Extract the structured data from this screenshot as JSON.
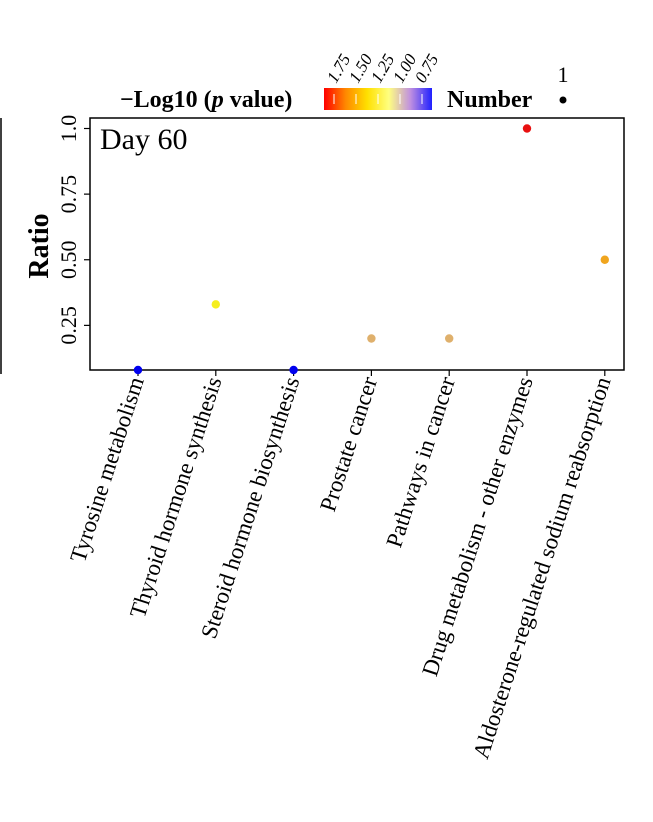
{
  "chart_data": {
    "type": "scatter",
    "panel_label": "Day 60",
    "ylabel": "Ratio",
    "xlabel": "",
    "ylim": [
      0.08,
      1.04
    ],
    "y_ticks": [
      0.25,
      0.5,
      0.75,
      1.0
    ],
    "y_tick_labels": [
      "0.25",
      "0.50",
      "0.75",
      "1.0"
    ],
    "categories": [
      "Tyrosine metabolism",
      "Thyroid hormone synthesis",
      "Steroid hormone biosynthesis",
      "Prostate cancer",
      "Pathways in cancer",
      "Drug metabolism - other enzymes",
      "Aldosterone-regulated sodium reabsorption"
    ],
    "points": [
      {
        "category": "Tyrosine metabolism",
        "ratio": 0.08,
        "neg_log10_p": 0.75,
        "number": 1,
        "color": "#0000ee"
      },
      {
        "category": "Thyroid hormone synthesis",
        "ratio": 0.33,
        "neg_log10_p": 1.15,
        "number": 1,
        "color": "#f5ee1e"
      },
      {
        "category": "Steroid hormone biosynthesis",
        "ratio": 0.08,
        "neg_log10_p": 0.75,
        "number": 1,
        "color": "#0000ee"
      },
      {
        "category": "Prostate cancer",
        "ratio": 0.2,
        "neg_log10_p": 1.1,
        "number": 1,
        "color": "#dfb06c"
      },
      {
        "category": "Pathways in cancer",
        "ratio": 0.2,
        "neg_log10_p": 1.1,
        "number": 1,
        "color": "#dfb06c"
      },
      {
        "category": "Drug metabolism - other enzymes",
        "ratio": 1.0,
        "neg_log10_p": 1.75,
        "number": 1,
        "color": "#e81010"
      },
      {
        "category": "Aldosterone-regulated sodium reabsorption",
        "ratio": 0.5,
        "neg_log10_p": 1.4,
        "number": 1,
        "color": "#f0a51e"
      }
    ],
    "legend": {
      "color_title": "−Log10 (p value)",
      "color_title_prefix": "−Log10 (",
      "color_title_italic": "p",
      "color_title_suffix": " value)",
      "color_ticks": [
        "1.75",
        "1.50",
        "1.25",
        "1.00",
        "0.75"
      ],
      "color_stops": [
        "#ff0000",
        "#ff8800",
        "#ffe000",
        "#ffff80",
        "#c090e0",
        "#2020ff"
      ],
      "size_title": "Number",
      "size_ticks": [
        "1"
      ]
    },
    "grid": false,
    "legend_position": "top"
  }
}
